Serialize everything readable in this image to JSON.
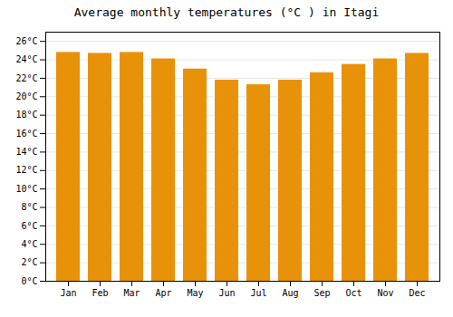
{
  "chart_data": {
    "type": "bar",
    "title": "Average monthly temperatures (°C ) in Itagi",
    "categories": [
      "Jan",
      "Feb",
      "Mar",
      "Apr",
      "May",
      "Jun",
      "Jul",
      "Aug",
      "Sep",
      "Oct",
      "Nov",
      "Dec"
    ],
    "values": [
      24.8,
      24.7,
      24.8,
      24.1,
      23.0,
      21.8,
      21.3,
      21.8,
      22.6,
      23.5,
      24.1,
      24.7
    ],
    "color": "#E8920A",
    "ylim": [
      0,
      27
    ],
    "yticks": [
      {
        "value": 0,
        "label": "0°C"
      },
      {
        "value": 2,
        "label": "2°C"
      },
      {
        "value": 4,
        "label": "4°C"
      },
      {
        "value": 6,
        "label": "6°C"
      },
      {
        "value": 8,
        "label": "8°C"
      },
      {
        "value": 10,
        "label": "10°C"
      },
      {
        "value": 12,
        "label": "12°C"
      },
      {
        "value": 14,
        "label": "14°C"
      },
      {
        "value": 16,
        "label": "16°C"
      },
      {
        "value": 18,
        "label": "18°C"
      },
      {
        "value": 20,
        "label": "20°C"
      },
      {
        "value": 22,
        "label": "22°C"
      },
      {
        "value": 24,
        "label": "24°C"
      },
      {
        "value": 26,
        "label": "26°C"
      }
    ],
    "grid": true
  }
}
